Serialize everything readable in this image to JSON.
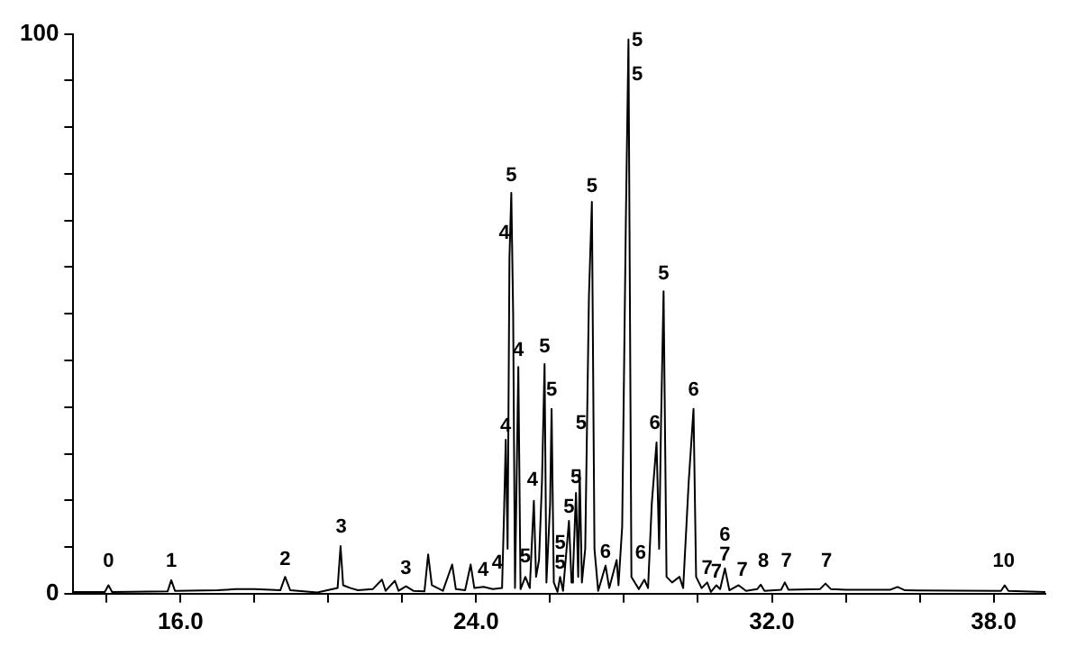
{
  "chart_data": {
    "type": "line",
    "color": "#000000",
    "x": [
      13.1,
      13.95,
      14.05,
      14.15,
      15.65,
      15.75,
      15.85,
      17.0,
      17.5,
      18.0,
      18.7,
      18.83,
      18.97,
      19.7,
      20.25,
      20.33,
      20.4,
      20.6,
      20.8,
      21.2,
      21.45,
      21.55,
      21.8,
      21.9,
      22.1,
      22.3,
      22.6,
      22.7,
      22.8,
      23.1,
      23.35,
      23.45,
      23.7,
      23.85,
      23.95,
      24.2,
      24.45,
      24.7,
      24.75,
      24.8,
      24.85,
      24.9,
      24.95,
      25.0,
      25.05,
      25.14,
      25.2,
      25.33,
      25.45,
      25.52,
      25.56,
      25.62,
      25.7,
      25.78,
      25.85,
      25.9,
      26.0,
      26.04,
      26.1,
      26.2,
      26.27,
      26.35,
      26.51,
      26.58,
      26.62,
      26.7,
      26.76,
      26.8,
      26.86,
      26.95,
      27.05,
      27.13,
      27.2,
      27.3,
      27.5,
      27.6,
      27.8,
      27.85,
      27.95,
      28.05,
      28.12,
      28.2,
      28.4,
      28.55,
      28.65,
      28.75,
      28.88,
      28.95,
      29.0,
      29.07,
      29.15,
      29.3,
      29.5,
      29.6,
      29.75,
      29.88,
      29.95,
      30.1,
      30.25,
      30.35,
      30.5,
      30.6,
      30.73,
      30.85,
      31.1,
      31.3,
      31.6,
      31.7,
      31.8,
      32.25,
      32.35,
      32.45,
      33.3,
      33.45,
      33.6,
      34.0,
      35.2,
      35.4,
      35.6,
      38.2,
      38.3,
      38.4,
      39.4
    ],
    "values": [
      0.3,
      0.3,
      1.5,
      0.3,
      0.4,
      2.4,
      0.5,
      0.6,
      0.8,
      0.8,
      0.6,
      3,
      0.6,
      0.2,
      1,
      8.5,
      1.5,
      1,
      0.6,
      0.8,
      2.5,
      0.5,
      2.3,
      0.5,
      1.3,
      0.5,
      0.4,
      7,
      1.5,
      0.5,
      5.2,
      0.8,
      0.6,
      5.2,
      1,
      1.2,
      0.8,
      1,
      13.5,
      27.5,
      8,
      60,
      71.6,
      50,
      1,
      40.5,
      0.8,
      3,
      1,
      11,
      16.6,
      3,
      6,
      20,
      41,
      2,
      16,
      33,
      2,
      0.3,
      3,
      0.5,
      13,
      2,
      4,
      18,
      3,
      22,
      2,
      8,
      53,
      70,
      8,
      0.5,
      5,
      1,
      6,
      1.5,
      12,
      67,
      99,
      3,
      0.8,
      2.5,
      1,
      16,
      27,
      8,
      30,
      54,
      3,
      2,
      3,
      1,
      20,
      33,
      3,
      1,
      2,
      0.3,
      1.5,
      0.8,
      4.5,
      0.6,
      1.5,
      0.5,
      0.8,
      1.6,
      0.5,
      0.7,
      2,
      0.7,
      0.8,
      1.8,
      0.8,
      0.7,
      0.7,
      1.2,
      0.6,
      0.5,
      1.5,
      0.5,
      0.3
    ],
    "xlim": [
      13.1,
      39.4
    ],
    "xticks": [
      {
        "value": 14,
        "label": null
      },
      {
        "value": 16,
        "label": "16.0"
      },
      {
        "value": 18,
        "label": null
      },
      {
        "value": 20,
        "label": null
      },
      {
        "value": 22,
        "label": null
      },
      {
        "value": 24,
        "label": "24.0"
      },
      {
        "value": 26,
        "label": null
      },
      {
        "value": 28,
        "label": null
      },
      {
        "value": 30,
        "label": null
      },
      {
        "value": 32,
        "label": "32.0"
      },
      {
        "value": 34,
        "label": null
      },
      {
        "value": 36,
        "label": null
      },
      {
        "value": 38,
        "label": "38.0"
      }
    ],
    "ylim": [
      0,
      100
    ],
    "yticks": [
      0,
      {
        "value": 8.33,
        "label": null
      },
      {
        "value": 16.67,
        "label": null
      },
      {
        "value": 25,
        "label": null
      },
      {
        "value": 33.33,
        "label": null
      },
      {
        "value": 41.67,
        "label": null
      },
      {
        "value": 50,
        "label": null
      },
      {
        "value": 58.33,
        "label": null
      },
      {
        "value": 66.67,
        "label": null
      },
      {
        "value": 75,
        "label": null
      },
      {
        "value": 83.33,
        "label": null
      },
      {
        "value": 91.67,
        "label": null
      },
      100
    ],
    "annotations": [
      {
        "text": "0",
        "x": 14.05,
        "y": 3.3
      },
      {
        "text": "1",
        "x": 15.75,
        "y": 3.3
      },
      {
        "text": "2",
        "x": 18.83,
        "y": 3.6
      },
      {
        "text": "3",
        "x": 20.35,
        "y": 9.4
      },
      {
        "text": "3",
        "x": 22.1,
        "y": 2.1
      },
      {
        "text": "4",
        "x": 24.19,
        "y": 1.8
      },
      {
        "text": "4",
        "x": 24.57,
        "y": 3
      },
      {
        "text": "4",
        "x": 24.8,
        "y": 27.5
      },
      {
        "text": "4",
        "x": 24.76,
        "y": 62
      },
      {
        "text": "5",
        "x": 24.95,
        "y": 72.2
      },
      {
        "text": "4",
        "x": 25.14,
        "y": 41
      },
      {
        "text": "5",
        "x": 25.33,
        "y": 4.2
      },
      {
        "text": "4",
        "x": 25.52,
        "y": 17.8
      },
      {
        "text": "5",
        "x": 25.85,
        "y": 41.7
      },
      {
        "text": "5",
        "x": 26.04,
        "y": 34
      },
      {
        "text": "5",
        "x": 26.27,
        "y": 3
      },
      {
        "text": "5",
        "x": 26.27,
        "y": 3
      },
      {
        "text": "5",
        "x": 26.51,
        "y": 13
      },
      {
        "text": "5",
        "x": 26.7,
        "y": 18.4
      },
      {
        "text": "5",
        "x": 26.84,
        "y": 28
      },
      {
        "text": "5",
        "x": 27.13,
        "y": 70.4
      },
      {
        "text": "6",
        "x": 27.5,
        "y": 5
      },
      {
        "text": "5",
        "x": 28.36,
        "y": 96.4
      },
      {
        "text": "5",
        "x": 28.36,
        "y": 90.3
      },
      {
        "text": "6",
        "x": 28.45,
        "y": 4.8
      },
      {
        "text": "6",
        "x": 28.83,
        "y": 28
      },
      {
        "text": "5",
        "x": 29.07,
        "y": 54.7
      },
      {
        "text": "6",
        "x": 29.88,
        "y": 34
      },
      {
        "text": "7",
        "x": 30.25,
        "y": 2
      },
      {
        "text": "7",
        "x": 30.5,
        "y": 1.5
      },
      {
        "text": "7",
        "x": 30.73,
        "y": 4.5
      },
      {
        "text": "6",
        "x": 30.73,
        "y": 4.5
      },
      {
        "text": "7",
        "x": 31.2,
        "y": 1.8
      },
      {
        "text": "8",
        "x": 31.77,
        "y": 3.3
      },
      {
        "text": "7",
        "x": 32.39,
        "y": 3.3
      },
      {
        "text": "7",
        "x": 33.48,
        "y": 3.3
      },
      {
        "text": "10",
        "x": 38.27,
        "y": 3.3
      }
    ]
  }
}
